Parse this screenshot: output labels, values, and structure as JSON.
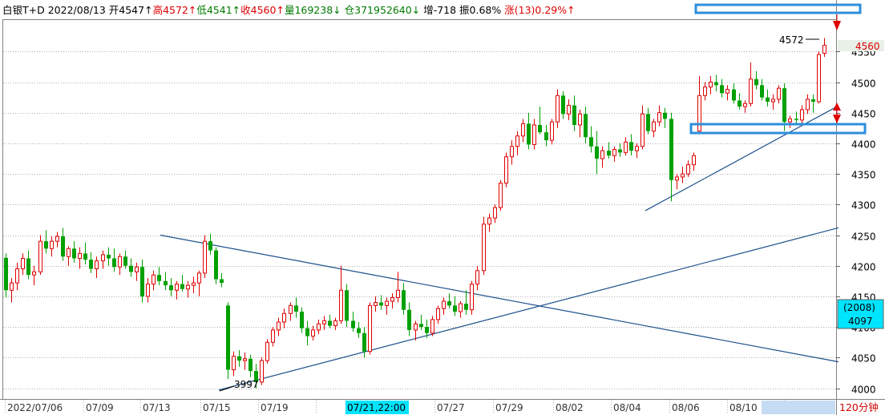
{
  "header": {
    "symbol": "白银T+D",
    "date": "2022/08/13",
    "open": "开4547↑",
    "high": "高4572↑",
    "low": "低4541↑",
    "close": "收4560↑",
    "volume": "量169238↓",
    "open_interest": "仓371952640↓",
    "oi_change": "增-718",
    "amplitude": "振0.68%",
    "change": "涨(13)0.29%↑"
  },
  "timeframe_label": "120分钟",
  "colors": {
    "up": "#e00000",
    "down": "#00a000",
    "trendline": "#1c4f8a",
    "highlight_box": "#2d8fdc",
    "cursor_box": "#00e5ff",
    "grid": "#b0b0b0"
  },
  "chart_data": {
    "type": "candlestick",
    "y_axis": {
      "range": [
        3990,
        4610
      ],
      "ticks": [
        4000,
        4050,
        4100,
        4150,
        4200,
        4250,
        4300,
        4350,
        4400,
        4450,
        4500,
        4550
      ]
    },
    "x_ticks": [
      "2022/07/06",
      "07/09",
      "07/13",
      "07/15",
      "07/19",
      "07/21",
      "07/27",
      "07/29",
      "08/02",
      "08/04",
      "08/06",
      "08/10",
      "08/12"
    ],
    "cursor_time": "07/21,22:00",
    "cursor_value_label": "(2008)",
    "cursor_value": "4097",
    "current_price_label": "4560",
    "annotations": {
      "high_label": "4572",
      "low_label": "3997"
    },
    "candles": [
      [
        4213,
        4220,
        4148,
        4160
      ],
      [
        4160,
        4180,
        4140,
        4172
      ],
      [
        4172,
        4205,
        4160,
        4195
      ],
      [
        4195,
        4220,
        4185,
        4212
      ],
      [
        4212,
        4225,
        4178,
        4185
      ],
      [
        4185,
        4200,
        4168,
        4190
      ],
      [
        4190,
        4250,
        4185,
        4240
      ],
      [
        4240,
        4258,
        4220,
        4228
      ],
      [
        4228,
        4248,
        4215,
        4240
      ],
      [
        4240,
        4255,
        4230,
        4248
      ],
      [
        4248,
        4262,
        4208,
        4215
      ],
      [
        4215,
        4232,
        4200,
        4228
      ],
      [
        4228,
        4240,
        4205,
        4212
      ],
      [
        4212,
        4230,
        4195,
        4220
      ],
      [
        4220,
        4238,
        4202,
        4210
      ],
      [
        4210,
        4222,
        4188,
        4195
      ],
      [
        4195,
        4215,
        4180,
        4208
      ],
      [
        4208,
        4225,
        4195,
        4218
      ],
      [
        4218,
        4230,
        4200,
        4212
      ],
      [
        4212,
        4228,
        4190,
        4198
      ],
      [
        4198,
        4220,
        4185,
        4215
      ],
      [
        4215,
        4225,
        4195,
        4200
      ],
      [
        4200,
        4212,
        4182,
        4190
      ],
      [
        4190,
        4205,
        4175,
        4198
      ],
      [
        4198,
        4210,
        4140,
        4150
      ],
      [
        4150,
        4180,
        4140,
        4170
      ],
      [
        4170,
        4192,
        4160,
        4185
      ],
      [
        4185,
        4198,
        4168,
        4175
      ],
      [
        4175,
        4190,
        4160,
        4168
      ],
      [
        4168,
        4180,
        4150,
        4160
      ],
      [
        4160,
        4175,
        4145,
        4170
      ],
      [
        4170,
        4185,
        4158,
        4162
      ],
      [
        4162,
        4175,
        4148,
        4168
      ],
      [
        4168,
        4182,
        4155,
        4172
      ],
      [
        4172,
        4192,
        4150,
        4188
      ],
      [
        4188,
        4250,
        4180,
        4240
      ],
      [
        4240,
        4252,
        4218,
        4225
      ],
      [
        4225,
        4230,
        4170,
        4178
      ],
      [
        4178,
        4188,
        4165,
        4172
      ],
      [
        4135,
        4140,
        4015,
        4030
      ],
      [
        4030,
        4060,
        4020,
        4052
      ],
      [
        4052,
        4062,
        4035,
        4045
      ],
      [
        4045,
        4058,
        4030,
        4048
      ],
      [
        4048,
        4055,
        4018,
        4028
      ],
      [
        4028,
        4040,
        4000,
        4010
      ],
      [
        4010,
        4050,
        4005,
        4045
      ],
      [
        4045,
        4080,
        4040,
        4075
      ],
      [
        4075,
        4100,
        4068,
        4095
      ],
      [
        4095,
        4115,
        4085,
        4108
      ],
      [
        4108,
        4130,
        4098,
        4122
      ],
      [
        4122,
        4140,
        4110,
        4135
      ],
      [
        4135,
        4148,
        4115,
        4125
      ],
      [
        4125,
        4132,
        4090,
        4098
      ],
      [
        4098,
        4110,
        4070,
        4085
      ],
      [
        4085,
        4102,
        4078,
        4095
      ],
      [
        4095,
        4112,
        4088,
        4105
      ],
      [
        4105,
        4118,
        4095,
        4110
      ],
      [
        4110,
        4120,
        4098,
        4102
      ],
      [
        4102,
        4115,
        4095,
        4110
      ],
      [
        4110,
        4200,
        4105,
        4160
      ],
      [
        4160,
        4170,
        4100,
        4110
      ],
      [
        4110,
        4125,
        4092,
        4098
      ],
      [
        4098,
        4108,
        4082,
        4090
      ],
      [
        4090,
        4100,
        4050,
        4060
      ],
      [
        4060,
        4140,
        4055,
        4135
      ],
      [
        4135,
        4150,
        4125,
        4140
      ],
      [
        4140,
        4152,
        4128,
        4135
      ],
      [
        4135,
        4148,
        4120,
        4142
      ],
      [
        4142,
        4155,
        4130,
        4148
      ],
      [
        4148,
        4190,
        4140,
        4160
      ],
      [
        4160,
        4172,
        4120,
        4128
      ],
      [
        4128,
        4140,
        4085,
        4095
      ],
      [
        4095,
        4110,
        4078,
        4105
      ],
      [
        4105,
        4120,
        4095,
        4100
      ],
      [
        4100,
        4112,
        4082,
        4090
      ],
      [
        4090,
        4118,
        4085,
        4112
      ],
      [
        4112,
        4135,
        4105,
        4130
      ],
      [
        4130,
        4148,
        4120,
        4142
      ],
      [
        4142,
        4155,
        4130,
        4135
      ],
      [
        4135,
        4150,
        4118,
        4125
      ],
      [
        4125,
        4142,
        4115,
        4138
      ],
      [
        4138,
        4160,
        4120,
        4128
      ],
      [
        4128,
        4175,
        4120,
        4170
      ],
      [
        4170,
        4200,
        4160,
        4192
      ],
      [
        4192,
        4280,
        4185,
        4268
      ],
      [
        4268,
        4285,
        4255,
        4278
      ],
      [
        4278,
        4300,
        4270,
        4295
      ],
      [
        4295,
        4340,
        4290,
        4335
      ],
      [
        4335,
        4385,
        4328,
        4378
      ],
      [
        4378,
        4405,
        4365,
        4395
      ],
      [
        4395,
        4420,
        4380,
        4412
      ],
      [
        4412,
        4440,
        4402,
        4432
      ],
      [
        4432,
        4450,
        4390,
        4398
      ],
      [
        4398,
        4440,
        4390,
        4430
      ],
      [
        4430,
        4460,
        4415,
        4418
      ],
      [
        4418,
        4430,
        4395,
        4405
      ],
      [
        4405,
        4440,
        4398,
        4435
      ],
      [
        4435,
        4488,
        4425,
        4478
      ],
      [
        4478,
        4485,
        4440,
        4448
      ],
      [
        4448,
        4472,
        4438,
        4462
      ],
      [
        4462,
        4478,
        4420,
        4430
      ],
      [
        4430,
        4455,
        4410,
        4448
      ],
      [
        4448,
        4460,
        4400,
        4410
      ],
      [
        4410,
        4428,
        4385,
        4395
      ],
      [
        4395,
        4420,
        4350,
        4375
      ],
      [
        4375,
        4395,
        4360,
        4388
      ],
      [
        4388,
        4402,
        4375,
        4380
      ],
      [
        4380,
        4395,
        4370,
        4390
      ],
      [
        4390,
        4400,
        4378,
        4385
      ],
      [
        4385,
        4410,
        4380,
        4402
      ],
      [
        4402,
        4415,
        4380,
        4388
      ],
      [
        4388,
        4400,
        4376,
        4395
      ],
      [
        4395,
        4462,
        4390,
        4448
      ],
      [
        4448,
        4458,
        4415,
        4420
      ],
      [
        4420,
        4440,
        4410,
        4435
      ],
      [
        4435,
        4462,
        4428,
        4450
      ],
      [
        4450,
        4458,
        4425,
        4440
      ],
      [
        4440,
        4450,
        4305,
        4340
      ],
      [
        4340,
        4350,
        4325,
        4345
      ],
      [
        4345,
        4362,
        4335,
        4350
      ],
      [
        4350,
        4372,
        4345,
        4365
      ],
      [
        4365,
        4385,
        4355,
        4380
      ],
      [
        4420,
        4510,
        4415,
        4478
      ],
      [
        4478,
        4500,
        4470,
        4492
      ],
      [
        4492,
        4510,
        4480,
        4500
      ],
      [
        4500,
        4512,
        4485,
        4495
      ],
      [
        4495,
        4505,
        4475,
        4482
      ],
      [
        4482,
        4495,
        4470,
        4488
      ],
      [
        4488,
        4498,
        4465,
        4470
      ],
      [
        4470,
        4482,
        4455,
        4460
      ],
      [
        4460,
        4470,
        4450,
        4465
      ],
      [
        4465,
        4532,
        4460,
        4505
      ],
      [
        4505,
        4518,
        4488,
        4495
      ],
      [
        4495,
        4505,
        4470,
        4475
      ],
      [
        4475,
        4488,
        4460,
        4468
      ],
      [
        4468,
        4480,
        4455,
        4472
      ],
      [
        4472,
        4495,
        4465,
        4490
      ],
      [
        4490,
        4498,
        4420,
        4435
      ],
      [
        4435,
        4445,
        4425,
        4440
      ],
      [
        4440,
        4452,
        4430,
        4438
      ],
      [
        4438,
        4462,
        4432,
        4455
      ],
      [
        4455,
        4480,
        4448,
        4472
      ],
      [
        4472,
        4480,
        4450,
        4468
      ],
      [
        4468,
        4550,
        4465,
        4545
      ],
      [
        4547,
        4572,
        4541,
        4560
      ]
    ],
    "trendlines": [
      {
        "from": [
          0.0,
          4000
        ],
        "to": [
          0.0,
          4000
        ]
      }
    ]
  }
}
